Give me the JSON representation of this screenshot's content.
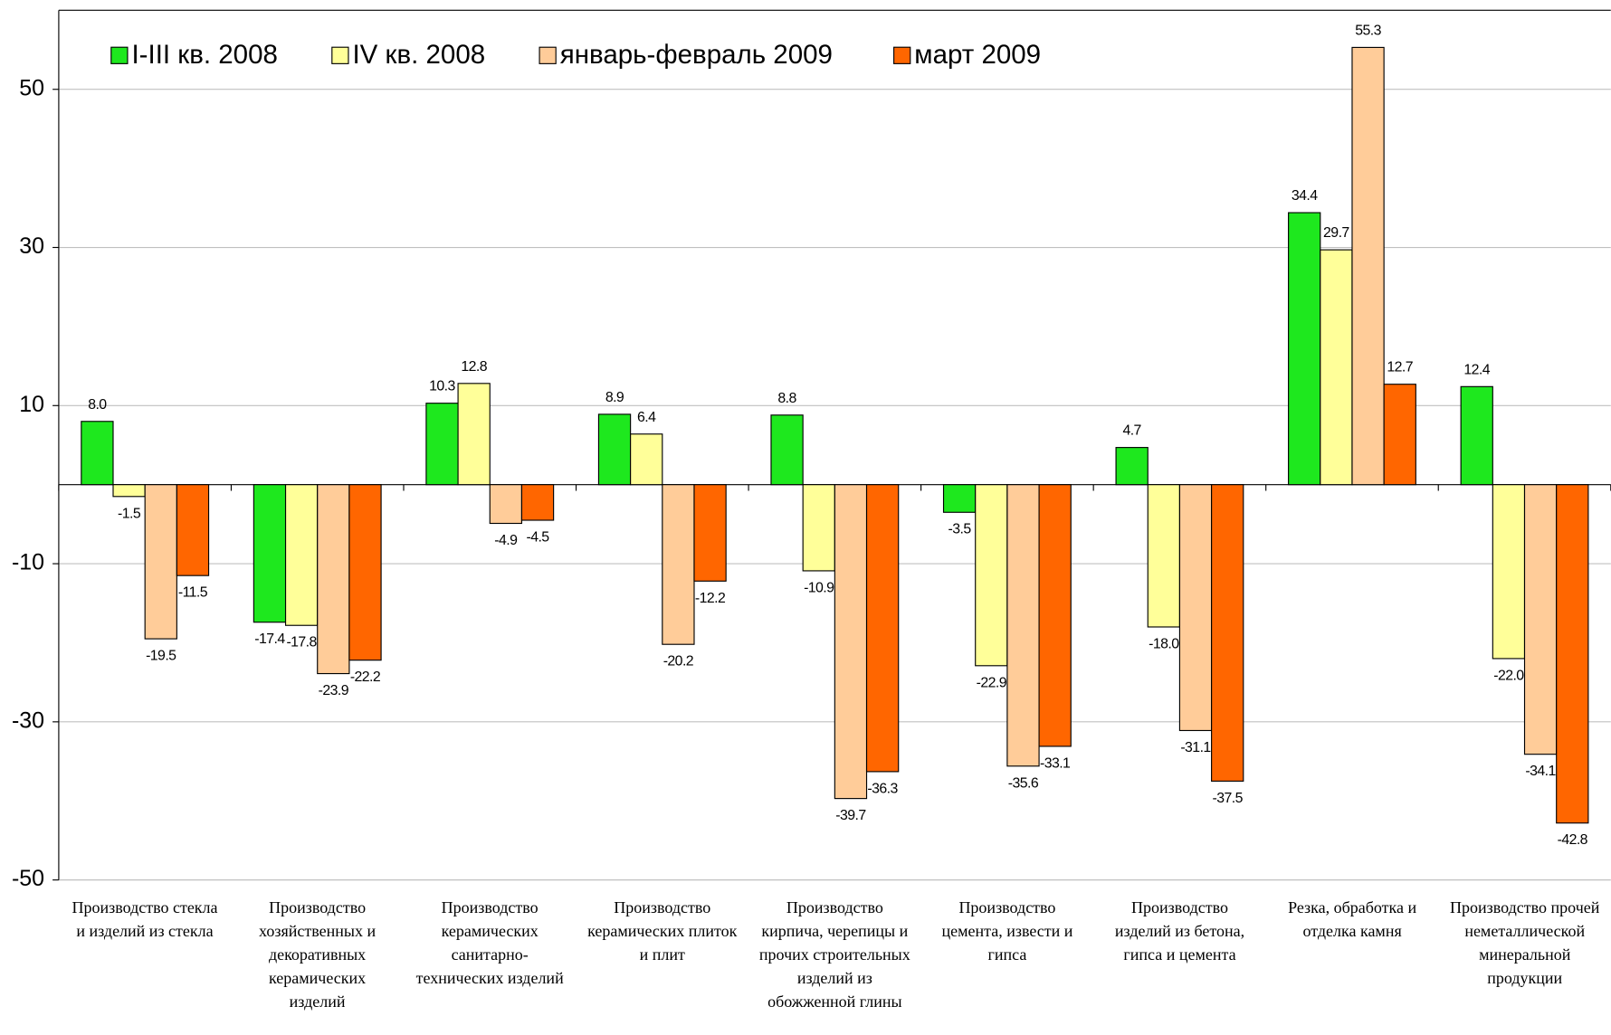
{
  "chart_data": {
    "type": "bar",
    "categories": [
      "Производство стекла и изделий из стекла",
      "Производство хозяйственных и декоративных керамических изделий",
      "Производство керамических санитарно-технических изделий",
      "Производство керамических плиток и плит",
      "Производство кирпича, черепицы и прочих строительных изделий из обожженной глины",
      "Производство цемента, извести и гипса",
      "Производство изделий из бетона, гипса и цемента",
      "Резка, обработка и отделка камня",
      "Производство прочей неметаллической минеральной продукции"
    ],
    "series": [
      {
        "name": "I-III кв. 2008",
        "color": "#1ee81e",
        "values": [
          8.0,
          -17.4,
          10.3,
          8.9,
          8.8,
          -3.5,
          4.7,
          34.4,
          12.4
        ],
        "value_labels": [
          "8.0",
          "-17.4",
          "10.3",
          "8.9",
          "8.8",
          "-3.5",
          "4.7",
          "34.4",
          "12.4"
        ]
      },
      {
        "name": "IV кв. 2008",
        "color": "#ffff99",
        "values": [
          -1.5,
          -17.8,
          12.8,
          6.4,
          -10.9,
          -22.9,
          -18.0,
          29.7,
          -22.0
        ],
        "value_labels": [
          "-1.5",
          "-17.8",
          "12.8",
          "6.4",
          "-10.9",
          "-22.9",
          "-18.0",
          "29.7",
          "-22.0"
        ]
      },
      {
        "name": "январь-февраль 2009",
        "color": "#ffcc99",
        "values": [
          -19.5,
          -23.9,
          -4.9,
          -20.2,
          -39.7,
          -35.6,
          -31.1,
          55.3,
          -34.1
        ],
        "value_labels": [
          "-19.5",
          "-23.9",
          "-4.9",
          "-20.2",
          "-39.7",
          "-35.6",
          "-31.1",
          "55.3",
          "-34.1"
        ]
      },
      {
        "name": "март 2009",
        "color": "#ff6600",
        "values": [
          -11.5,
          -22.2,
          -4.5,
          -12.2,
          -36.3,
          -33.1,
          -37.5,
          12.7,
          -42.8
        ],
        "value_labels": [
          "-11.5",
          "-22.2",
          "-4.5",
          "-12.2",
          "-36.3",
          "-33.1",
          "-37.5",
          "12.7",
          "-42.8"
        ]
      }
    ],
    "ylim": [
      -50,
      60
    ],
    "yticks": [
      -50,
      -30,
      -10,
      10,
      30,
      50
    ],
    "grid": true,
    "legend": "top-left"
  }
}
